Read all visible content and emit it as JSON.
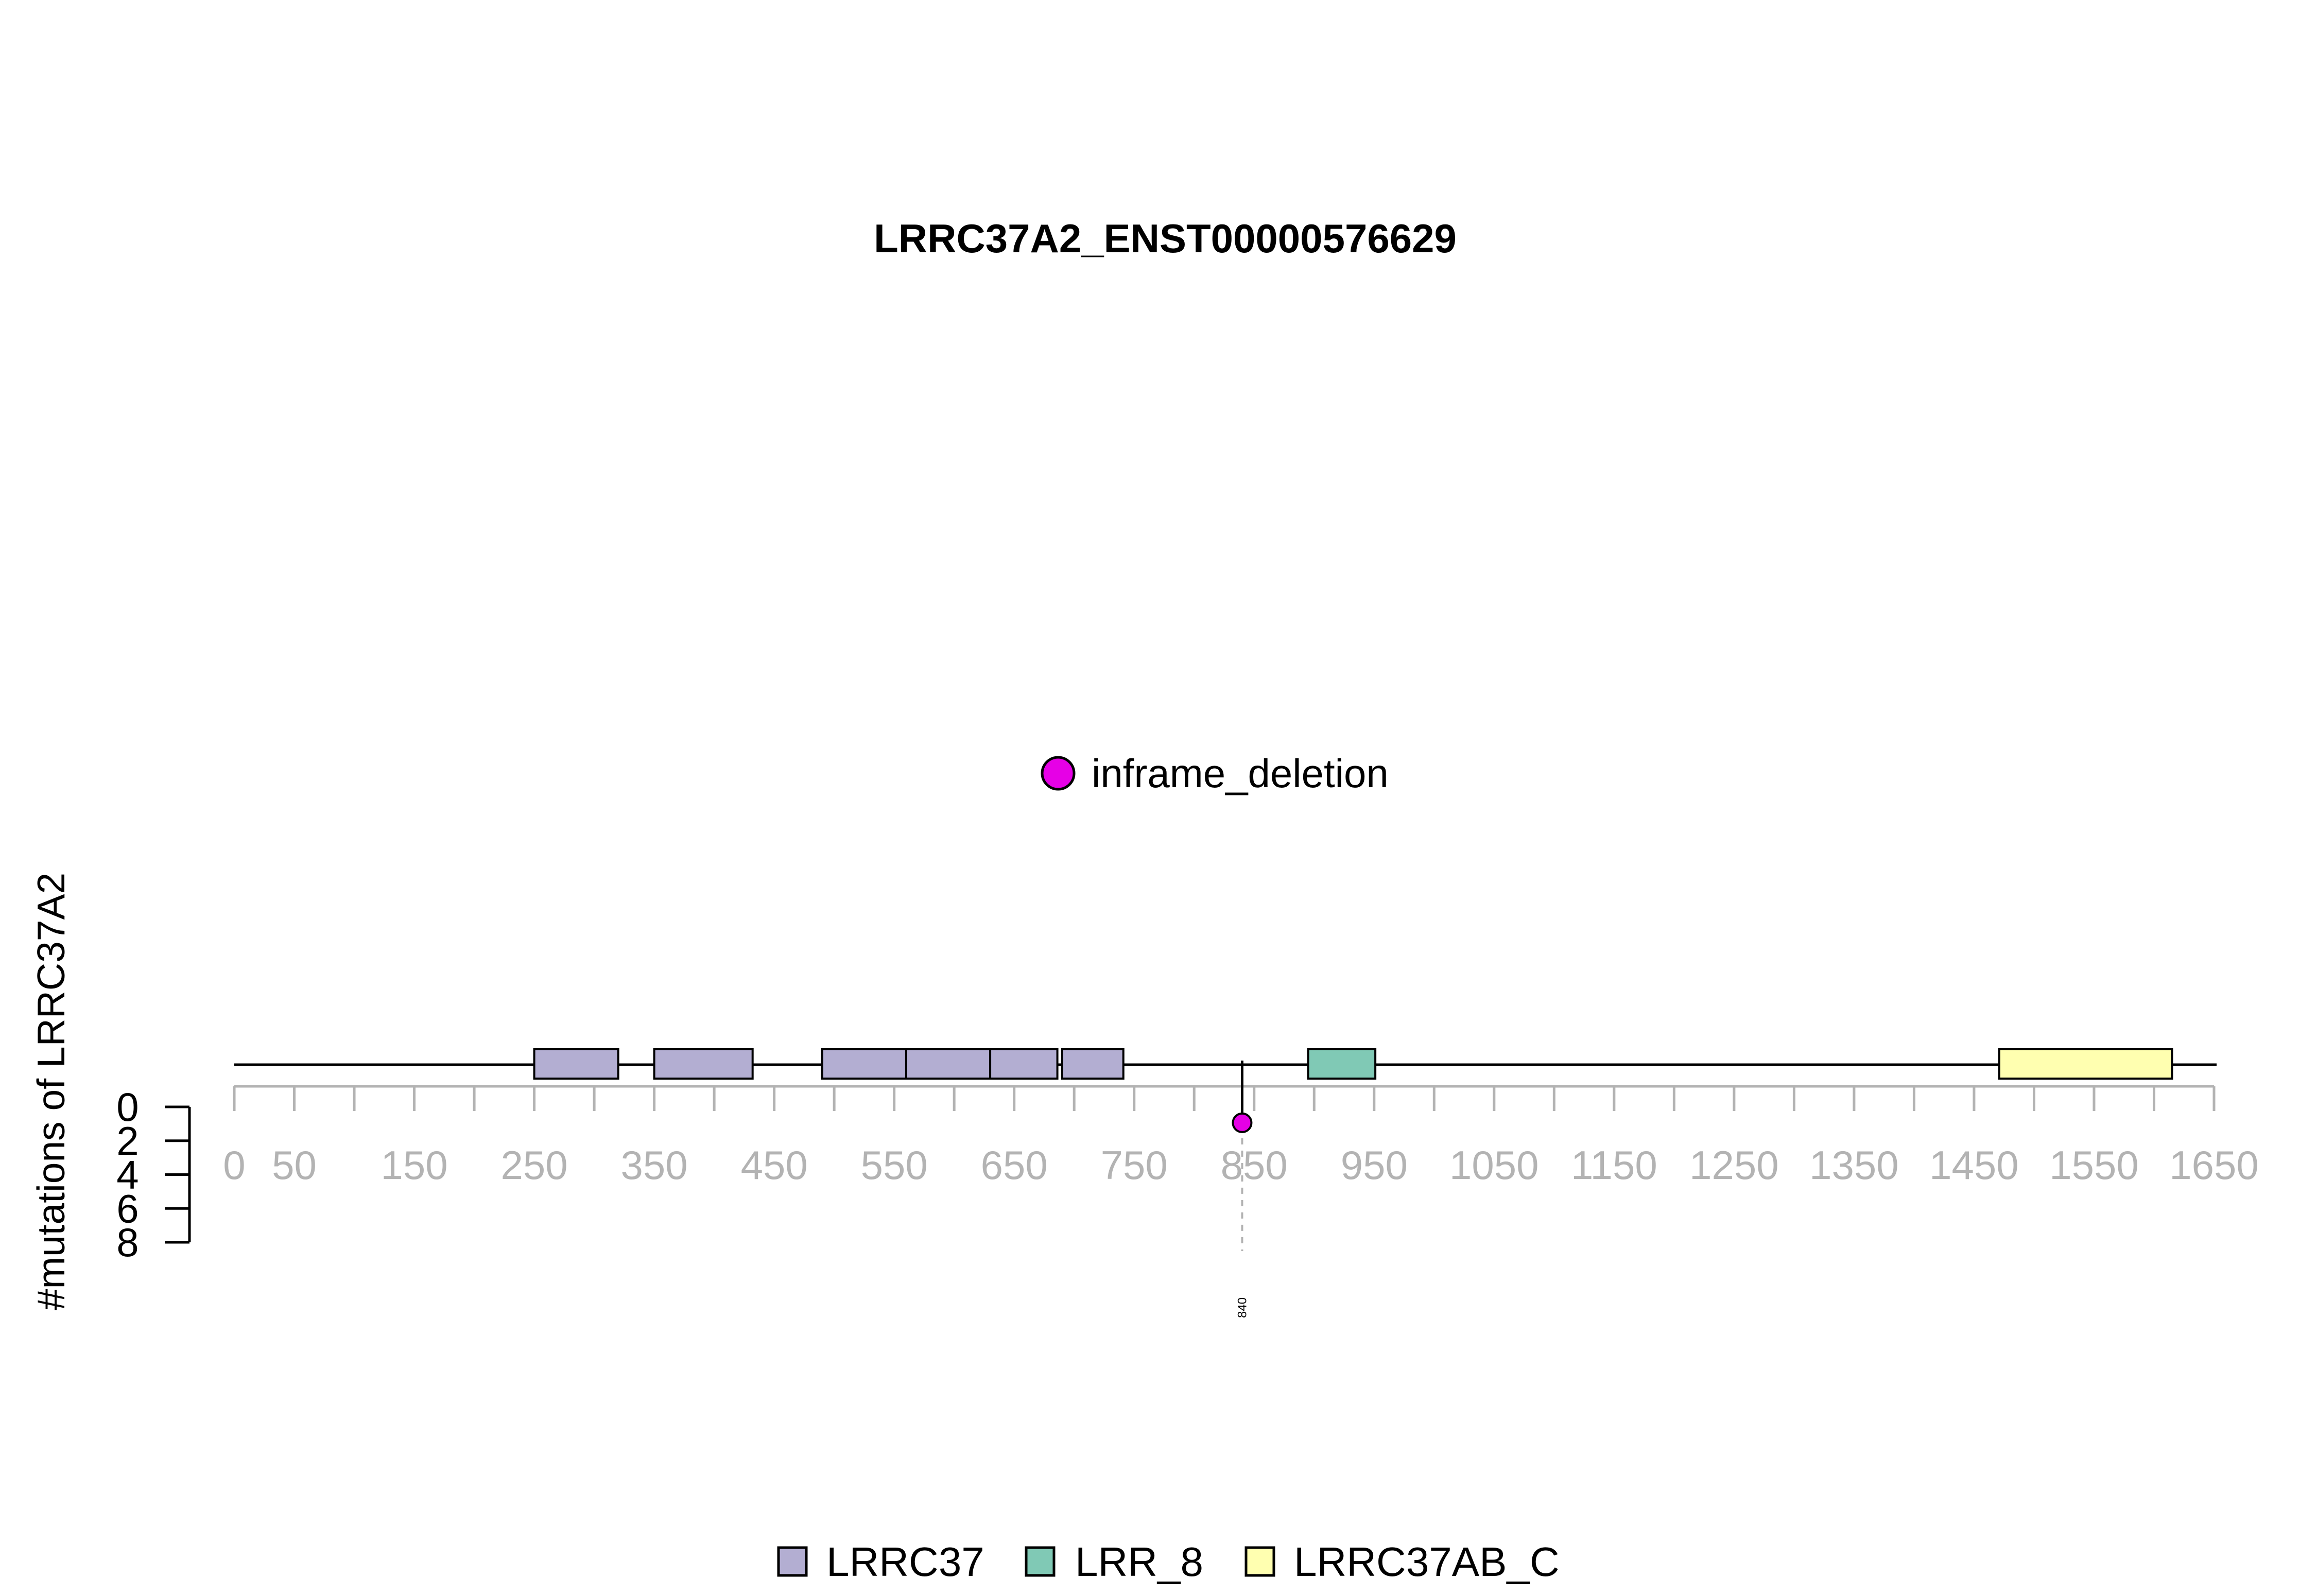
{
  "chart_data": {
    "type": "lollipop",
    "title": "LRRC37A2_ENST00000576629",
    "ylabel": "#mutations of LRRC37A2",
    "xlim": [
      0,
      1650
    ],
    "x_ticks": [
      0,
      50,
      100,
      150,
      200,
      250,
      300,
      350,
      400,
      450,
      500,
      550,
      600,
      650,
      700,
      750,
      800,
      850,
      900,
      950,
      1000,
      1050,
      1100,
      1150,
      1200,
      1250,
      1300,
      1350,
      1400,
      1450,
      1500,
      1550,
      1600,
      1650
    ],
    "x_tick_labels": [
      "0",
      "50",
      "150",
      "250",
      "350",
      "450",
      "550",
      "650",
      "750",
      "850",
      "950",
      "1050",
      "1150",
      "1250",
      "1350",
      "1450",
      "1550",
      "1650"
    ],
    "ylim": [
      0,
      8
    ],
    "y_ticks": [
      "0",
      "2",
      "4",
      "6",
      "8"
    ],
    "domains": [
      {
        "name": "LRRC37",
        "start": 250,
        "end": 320
      },
      {
        "name": "LRRC37",
        "start": 350,
        "end": 432
      },
      {
        "name": "LRRC37",
        "start": 490,
        "end": 560
      },
      {
        "name": "LRRC37",
        "start": 560,
        "end": 630
      },
      {
        "name": "LRRC37",
        "start": 630,
        "end": 686
      },
      {
        "name": "LRRC37",
        "start": 690,
        "end": 741
      },
      {
        "name": "LRR_8",
        "start": 895,
        "end": 951
      },
      {
        "name": "LRRC37AB_C",
        "start": 1471,
        "end": 1615
      }
    ],
    "mutations": [
      {
        "position": 840,
        "count": 1,
        "type": "inframe_deletion",
        "label": "840"
      }
    ],
    "mutation_legend": [
      {
        "label": "inframe_deletion",
        "color": "#e600e6"
      }
    ],
    "domain_legend": [
      {
        "label": "LRRC37",
        "color": "#b3aed2"
      },
      {
        "label": "LRR_8",
        "color": "#80c9b5"
      },
      {
        "label": "LRRC37AB_C",
        "color": "#ffffb0"
      }
    ]
  }
}
